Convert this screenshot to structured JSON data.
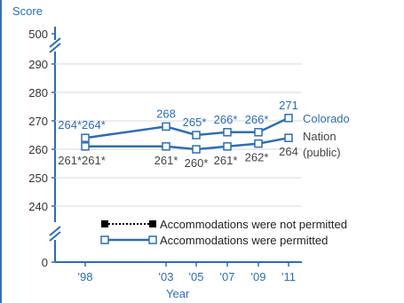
{
  "chart_data": {
    "type": "line",
    "ylabel": "Score",
    "xlabel": "Year",
    "x": [
      "'98",
      "'03",
      "'05",
      "'07",
      "'09",
      "'11"
    ],
    "x_years": [
      1998,
      2003,
      2005,
      2007,
      2009,
      2011
    ],
    "y_ticks": [
      "500",
      "290",
      "280",
      "270",
      "260",
      "250",
      "240",
      "0"
    ],
    "ylim": [
      235,
      295
    ],
    "axis_breaks": true,
    "series": [
      {
        "name": "Colorado",
        "color": "#2e6db4",
        "values": [
          264,
          268,
          265,
          266,
          266,
          271
        ],
        "labels": [
          "264*264*",
          "268",
          "265*",
          "266*",
          "266*",
          "271"
        ]
      },
      {
        "name": "Nation (public)",
        "name_lines": [
          "Nation",
          "(public)"
        ],
        "color": "#2e6db4",
        "values": [
          261,
          261,
          260,
          261,
          262,
          264
        ],
        "labels": [
          "261*261*",
          "261*",
          "260*",
          "261*",
          "262*",
          "264"
        ]
      }
    ],
    "legend": [
      {
        "label": "Accommodations were not permitted",
        "style": "dotted-black-filled"
      },
      {
        "label": "Accommodations were permitted",
        "style": "solid-blue-open"
      }
    ],
    "colors": {
      "axis": "#2e6db4",
      "text_blue": "#2e6db4",
      "text_gray": "#555555"
    }
  }
}
